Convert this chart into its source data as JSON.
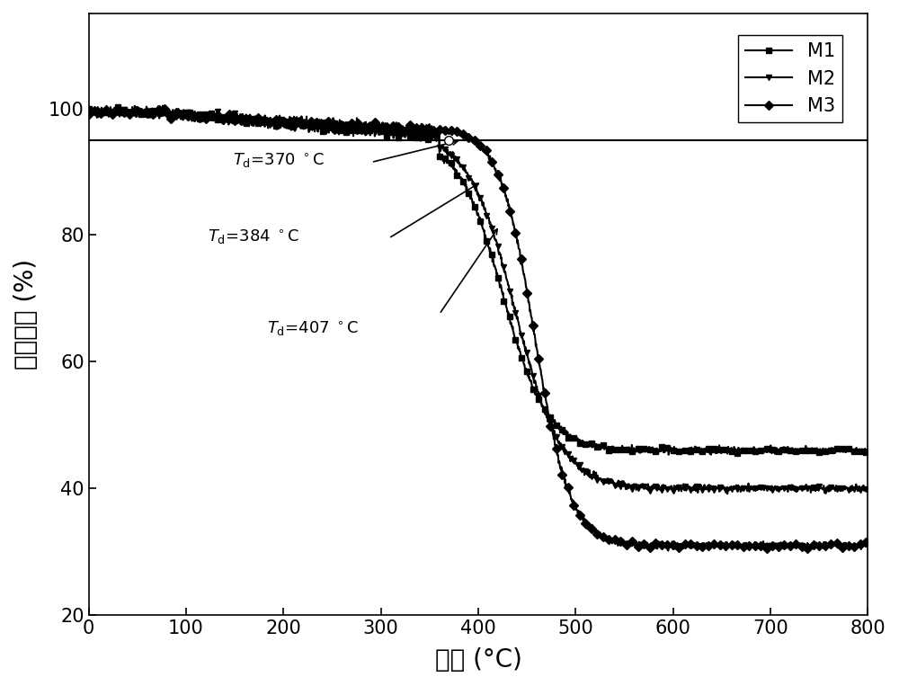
{
  "title": "",
  "xlabel": "温度 (°C)",
  "ylabel": "质量损失 (%)",
  "xlim": [
    0,
    800
  ],
  "ylim": [
    20,
    115
  ],
  "yticks": [
    20,
    40,
    60,
    80,
    100
  ],
  "xticks": [
    0,
    100,
    200,
    300,
    400,
    500,
    600,
    700,
    800
  ],
  "hline_y": 95,
  "background_color": "#ffffff",
  "linewidth": 1.5,
  "markersize": 5,
  "markevery": 15,
  "fontsize_labels": 20,
  "fontsize_ticks": 15,
  "fontsize_legend": 15,
  "fontsize_annot": 13
}
